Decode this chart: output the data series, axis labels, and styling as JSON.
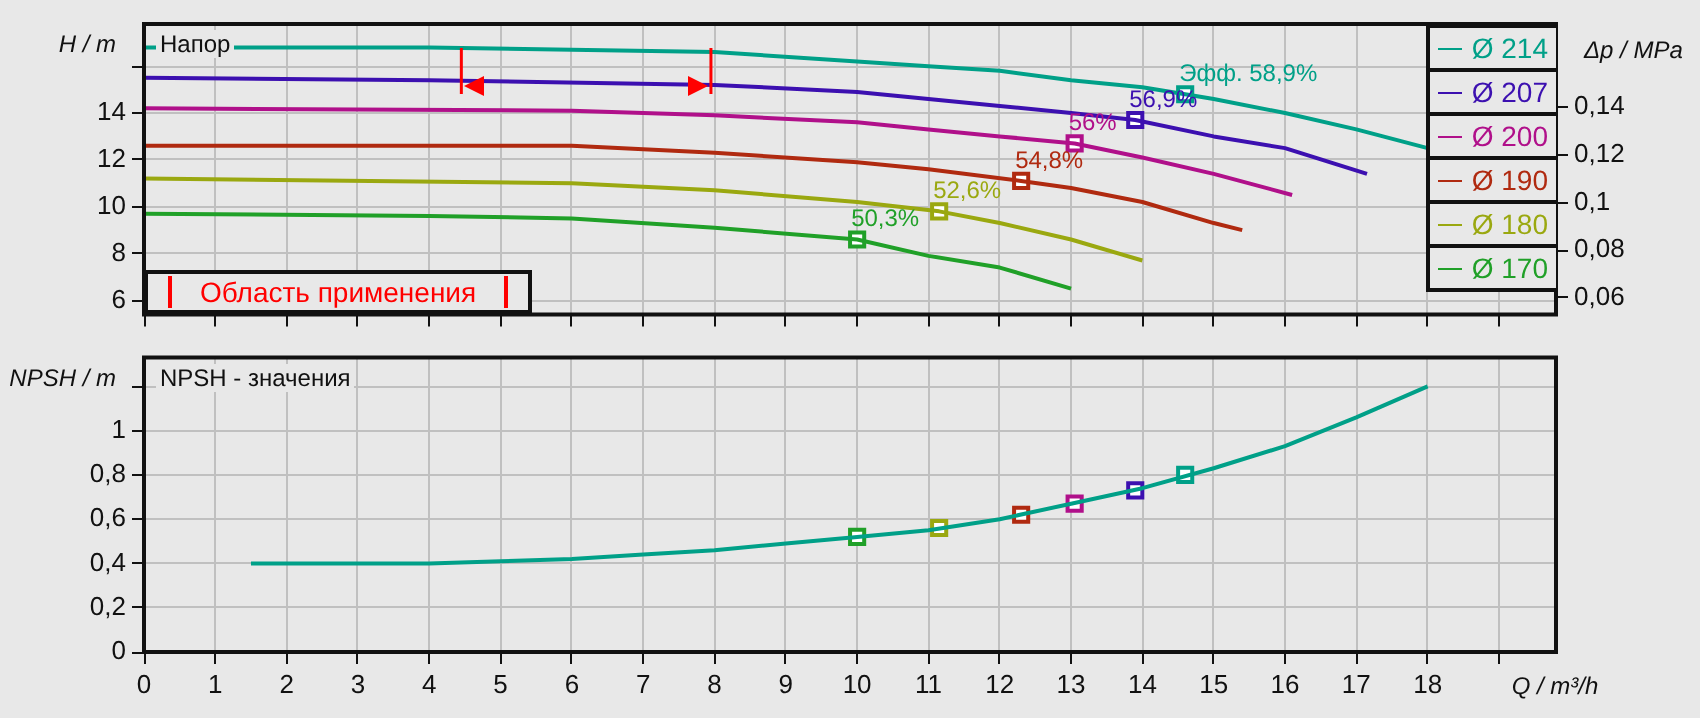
{
  "chart_data": [
    {
      "type": "line",
      "title": "Напор",
      "ylabel": "H / m",
      "y2label": "Δp / MPa",
      "xlim": [
        0,
        19.8
      ],
      "xticks": [
        0,
        1,
        2,
        3,
        4,
        5,
        6,
        7,
        8,
        9,
        10,
        11,
        12,
        13,
        14,
        15,
        16,
        17,
        18,
        {
          "value": 19,
          "label": null
        }
      ],
      "ylim": [
        5.4,
        17.8
      ],
      "yticks": [
        6,
        8,
        10,
        12,
        14,
        {
          "value": 16,
          "label": null
        }
      ],
      "y2lim": [
        0.053,
        0.175
      ],
      "y2ticks": [
        {
          "value": 0.06,
          "label": "0,06"
        },
        {
          "value": 0.08,
          "label": "0,08"
        },
        {
          "value": 0.1,
          "label": "0,1"
        },
        {
          "value": 0.12,
          "label": "0,12"
        },
        {
          "value": 0.14,
          "label": "0,14"
        }
      ],
      "tick_labels": "y",
      "grid": true,
      "legend": "top right",
      "marker": "none",
      "series": [
        {
          "name": "Ø 214",
          "color": "#00a088",
          "x": [
            0,
            4,
            8,
            10,
            11,
            12,
            13,
            14,
            14.6,
            15,
            16,
            17,
            18
          ],
          "values": [
            16.8,
            16.8,
            16.6,
            16.2,
            16.0,
            15.8,
            15.4,
            15.1,
            14.8,
            14.6,
            14.0,
            13.3,
            12.5
          ]
        },
        {
          "name": "Ø 207",
          "color": "#3c10b0",
          "x": [
            0,
            4,
            8,
            10,
            11,
            12,
            13,
            13.9,
            15,
            16,
            17.15
          ],
          "values": [
            15.5,
            15.4,
            15.2,
            14.9,
            14.6,
            14.3,
            14.0,
            13.7,
            13.0,
            12.5,
            11.4
          ]
        },
        {
          "name": "Ø 200",
          "color": "#b0108a",
          "x": [
            0,
            6,
            8,
            10,
            11,
            12,
            13.05,
            14,
            15,
            16.1
          ],
          "values": [
            14.2,
            14.1,
            13.9,
            13.6,
            13.3,
            13.0,
            12.7,
            12.1,
            11.4,
            10.5
          ]
        },
        {
          "name": "Ø 190",
          "color": "#b02a10",
          "x": [
            0,
            6,
            8,
            10,
            11,
            12.3,
            13,
            14,
            15,
            15.4
          ],
          "values": [
            12.6,
            12.6,
            12.3,
            11.9,
            11.6,
            11.1,
            10.8,
            10.2,
            9.3,
            9.0
          ]
        },
        {
          "name": "Ø 180",
          "color": "#9aa810",
          "x": [
            0,
            6,
            8,
            10,
            11.15,
            12,
            13,
            14
          ],
          "values": [
            11.2,
            11.0,
            10.7,
            10.2,
            9.8,
            9.3,
            8.6,
            7.7
          ]
        },
        {
          "name": "Ø 170",
          "color": "#20a028",
          "x": [
            0,
            4,
            6,
            8,
            10,
            11,
            12,
            13
          ],
          "values": [
            9.7,
            9.6,
            9.5,
            9.1,
            8.6,
            7.9,
            7.4,
            6.5
          ]
        },
        {
          "type": "scatter",
          "marker": "square",
          "x": [
            14.6,
            13.9,
            13.05,
            12.3,
            11.15,
            10
          ],
          "values": [
            14.8,
            13.7,
            12.7,
            11.1,
            9.8,
            8.6
          ],
          "colors": [
            "#00a088",
            "#3c10b0",
            "#b0108a",
            "#b02a10",
            "#9aa810",
            "#20a028"
          ]
        }
      ],
      "annotations": [
        {
          "text": "Эфф. 58,9%",
          "x": 14.6,
          "y": 14.8
        },
        {
          "text": "56,9%",
          "x": 13.9,
          "y": 13.7
        },
        {
          "text": "56%",
          "x": 13.05,
          "y": 12.7
        },
        {
          "text": "54,8%",
          "x": 12.3,
          "y": 11.1
        },
        {
          "text": "52,6%",
          "x": 11.15,
          "y": 9.8
        },
        {
          "text": "50,3%",
          "x": 10,
          "y": 8.6
        },
        "Область применения"
      ],
      "ref_lines": [
        {
          "axis": "x",
          "value": 4.45,
          "color": "#ff0000"
        },
        {
          "axis": "x",
          "value": 7.95,
          "color": "#ff0000"
        }
      ]
    },
    {
      "type": "line",
      "title": "NPSH - значения",
      "ylabel": "NPSH / m",
      "xlabel": "Q / m³/h",
      "xlim": [
        0,
        19.8
      ],
      "xticks": [
        0,
        1,
        2,
        3,
        4,
        5,
        6,
        7,
        8,
        9,
        10,
        11,
        12,
        13,
        14,
        15,
        16,
        17,
        18,
        {
          "value": 19,
          "label": null
        }
      ],
      "ylim": [
        0,
        1.33
      ],
      "yticks": [
        0,
        {
          "value": 0.2,
          "label": "0,2"
        },
        {
          "value": 0.4,
          "label": "0,4"
        },
        {
          "value": 0.6,
          "label": "0,6"
        },
        {
          "value": 0.8,
          "label": "0,8"
        },
        1,
        {
          "value": 1.2,
          "label": null
        }
      ],
      "grid": true,
      "marker": "none",
      "series": [
        {
          "color": "#00a088",
          "x": [
            1.5,
            4,
            5,
            6,
            7,
            8,
            9,
            10,
            11,
            12,
            13,
            14,
            15,
            16,
            17,
            18
          ],
          "values": [
            0.4,
            0.4,
            0.41,
            0.42,
            0.44,
            0.46,
            0.49,
            0.52,
            0.55,
            0.6,
            0.67,
            0.74,
            0.83,
            0.93,
            1.06,
            1.2
          ]
        },
        {
          "type": "scatter",
          "marker": "square",
          "x": [
            14.6,
            13.9,
            13.05,
            12.3,
            11.15,
            10
          ],
          "values": [
            0.8,
            0.73,
            0.67,
            0.62,
            0.56,
            0.52
          ],
          "colors": [
            "#00a088",
            "#3c10b0",
            "#b0108a",
            "#b02a10",
            "#9aa810",
            "#20a028"
          ]
        }
      ]
    }
  ]
}
